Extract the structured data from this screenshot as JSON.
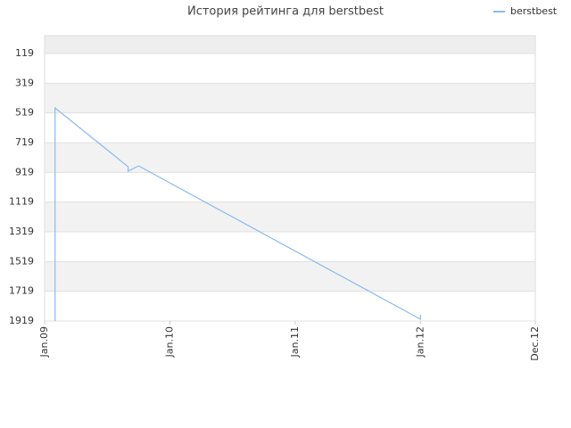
{
  "chart_data": {
    "type": "line",
    "title": "История рейтинга для berstbest",
    "x": [
      "2009-02",
      "2009-02",
      "2009-09",
      "2009-09",
      "2009-10",
      "2012-01",
      "2012-01"
    ],
    "series": [
      {
        "name": "berstbest",
        "color": "#88bbee",
        "values": [
          1919,
          485,
          881,
          911,
          875,
          1907,
          1877
        ]
      }
    ],
    "xlim": [
      "2009-01",
      "2012-12"
    ],
    "xticks": [
      {
        "value": "2009-01",
        "label": "Jan.09"
      },
      {
        "value": "2010-01",
        "label": "Jan.10"
      },
      {
        "value": "2011-01",
        "label": "Jan.11"
      },
      {
        "value": "2012-01",
        "label": "Jan.12"
      },
      {
        "value": "2012-12",
        "label": "Dec.12"
      }
    ],
    "ylim": [
      -1,
      1919
    ],
    "y_reversed": true,
    "yticks": [
      119,
      319,
      519,
      719,
      919,
      1119,
      1319,
      1519,
      1719,
      1919
    ],
    "grid": true,
    "legend": "top-right"
  }
}
